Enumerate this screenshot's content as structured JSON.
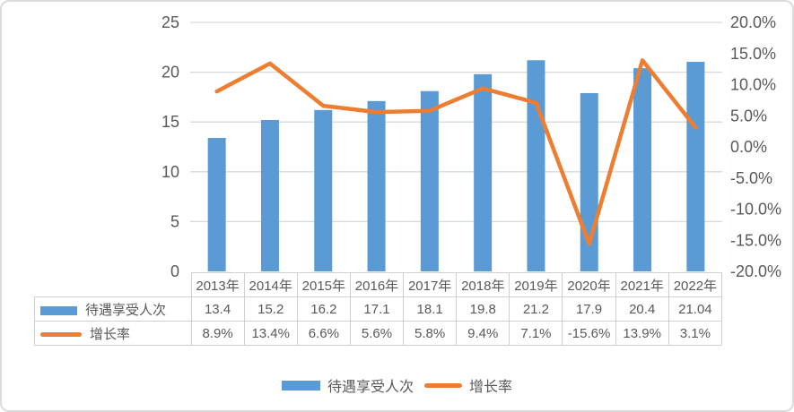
{
  "chart_data": {
    "type": "combo-bar-line",
    "title": "",
    "categories": [
      "2013年",
      "2014年",
      "2015年",
      "2016年",
      "2017年",
      "2018年",
      "2019年",
      "2020年",
      "2021年",
      "2022年"
    ],
    "series": [
      {
        "name": "待遇享受人次",
        "type": "bar",
        "axis": "left",
        "color": "#5B9BD5",
        "values": [
          13.4,
          15.2,
          16.2,
          17.1,
          18.1,
          19.8,
          21.2,
          17.9,
          20.4,
          21.04
        ],
        "display_values": [
          "13.4",
          "15.2",
          "16.2",
          "17.1",
          "18.1",
          "19.8",
          "21.2",
          "17.9",
          "20.4",
          "21.04"
        ]
      },
      {
        "name": "增长率",
        "type": "line",
        "axis": "right",
        "color": "#ED7D31",
        "values": [
          8.9,
          13.4,
          6.6,
          5.6,
          5.8,
          9.4,
          7.1,
          -15.6,
          13.9,
          3.1
        ],
        "display_values": [
          "8.9%",
          "13.4%",
          "6.6%",
          "5.6%",
          "5.8%",
          "9.4%",
          "7.1%",
          "-15.6%",
          "13.9%",
          "3.1%"
        ]
      }
    ],
    "left_axis": {
      "min": 0,
      "max": 25,
      "tick_values": [
        25,
        20,
        15,
        10,
        5,
        0
      ],
      "tick_labels": [
        "25",
        "20",
        "15",
        "10",
        "5",
        "0"
      ]
    },
    "right_axis": {
      "min": -20,
      "max": 20,
      "tick_values": [
        20,
        15,
        10,
        5,
        0,
        -5,
        -10,
        -15,
        -20
      ],
      "tick_labels": [
        "20.0%",
        "15.0%",
        "10.0%",
        "5.0%",
        "0.0%",
        "-5.0%",
        "-10.0%",
        "-15.0%",
        "-20.0%"
      ]
    },
    "gridlines": "horizontal at left-axis ticks",
    "legend_position": "bottom",
    "data_table_shown": true
  },
  "legend": {
    "items": [
      {
        "label": "待遇享受人次",
        "swatch": "bar",
        "color": "#5B9BD5"
      },
      {
        "label": "增长率",
        "swatch": "line",
        "color": "#ED7D31"
      }
    ]
  },
  "colors": {
    "bar": "#5B9BD5",
    "line": "#ED7D31",
    "text": "#595959",
    "gridline": "#D9D9D9",
    "table_border": "#D0D0D0",
    "frame_border": "#DCDCDC",
    "background": "#FFFFFF"
  }
}
